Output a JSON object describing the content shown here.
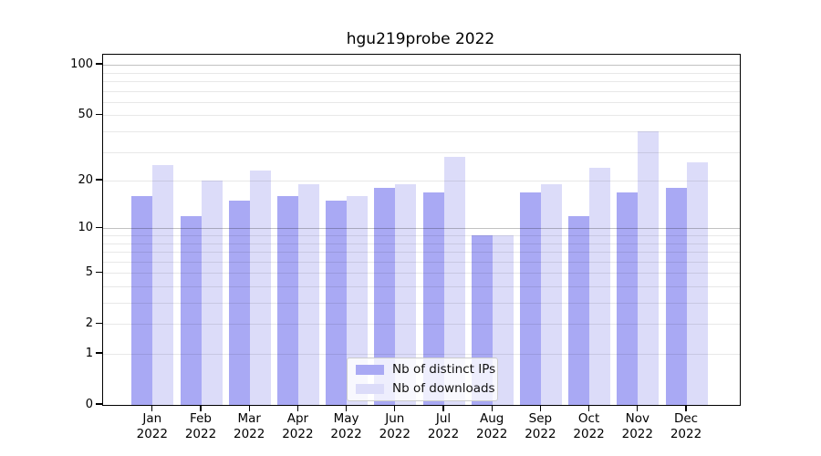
{
  "chart_data": {
    "type": "bar",
    "title": "hgu219probe 2022",
    "categories": [
      "Jan",
      "Feb",
      "Mar",
      "Apr",
      "May",
      "Jun",
      "Jul",
      "Aug",
      "Sep",
      "Oct",
      "Nov",
      "Dec"
    ],
    "x_tick_year": "2022",
    "series": [
      {
        "name": "Nb of distinct IPs",
        "color": "#a9a9f4",
        "values": [
          16,
          12,
          15,
          16,
          15,
          18,
          17,
          9,
          17,
          12,
          17,
          18
        ]
      },
      {
        "name": "Nb of downloads",
        "color": "#dcdcf9",
        "values": [
          25,
          20,
          23,
          19,
          16,
          19,
          28,
          9,
          19,
          24,
          40,
          26
        ]
      }
    ],
    "yscale": "log10(1+x)",
    "ylim": [
      0,
      115
    ],
    "yticks": [
      0,
      1,
      2,
      5,
      10,
      20,
      50,
      100
    ],
    "minor_gridlines": [
      1,
      2,
      3,
      4,
      5,
      6,
      7,
      8,
      9,
      20,
      30,
      40,
      50,
      60,
      70,
      80,
      90
    ],
    "major_gridlines": [
      10,
      100
    ],
    "grid": true,
    "legend_position": "lower center",
    "axis_color": "#000000",
    "background_color": "#ffffff"
  }
}
